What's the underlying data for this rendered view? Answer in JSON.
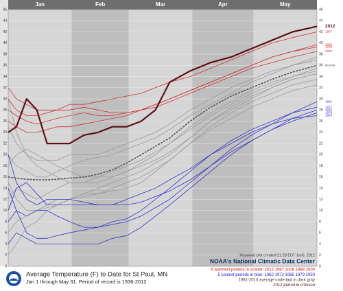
{
  "chart_data": {
    "type": "line",
    "title": "Average Temperature (F) to Date for St Paul, MN",
    "subtitle": "Jan 1 through May 31. Period of record is 1938-2012",
    "source": "NOAA's National Climatic Data Center",
    "credit": "Haywood plot created 21:28 EDT Jun6, 2012",
    "notes": [
      {
        "text": "5 warmest periods in scarlet: 2012 1987 2006 1998 2000",
        "color": "#cc2222"
      },
      {
        "text": "5 coolest periods in blue: 1962 1972 1965 1979 1950",
        "color": "#2222cc"
      },
      {
        "text": "1981-2010 average underlaid in dark gray",
        "color": "#444444"
      },
      {
        "text": "2012 period in crimson",
        "color": "#5c0f14"
      }
    ],
    "x": [
      1,
      5,
      10,
      15,
      20,
      25,
      31,
      38,
      45,
      52,
      59,
      66,
      73,
      80,
      90,
      100,
      110,
      120,
      130,
      140,
      152
    ],
    "xlim": [
      1,
      152
    ],
    "xticks": [
      {
        "value": 1,
        "label": "Jan"
      },
      {
        "value": 32,
        "label": "Feb"
      },
      {
        "value": 60,
        "label": "Mar"
      },
      {
        "value": 91,
        "label": "Apr"
      },
      {
        "value": 121,
        "label": "May"
      }
    ],
    "ylim": [
      0,
      46
    ],
    "yticks": [
      0,
      2,
      4,
      6,
      8,
      10,
      12,
      14,
      16,
      18,
      20,
      22,
      24,
      26,
      28,
      30,
      32,
      34,
      36,
      38,
      40,
      42,
      44,
      46
    ],
    "grid": true,
    "series": [
      {
        "color": "#9a9a9a",
        "values": [
          20,
          18,
          17,
          16,
          16,
          17,
          18,
          19,
          19.5,
          20,
          21,
          22,
          23,
          24.5,
          27,
          29,
          31,
          33,
          34.5,
          36,
          37.5
        ]
      },
      {
        "color": "#9a9a9a",
        "values": [
          12,
          14,
          13,
          12,
          13,
          14,
          15,
          15,
          16,
          17,
          18,
          19,
          20.5,
          22,
          24.5,
          27,
          29,
          31,
          32.5,
          34,
          35
        ]
      },
      {
        "color": "#9a9a9a",
        "values": [
          25,
          22,
          20,
          19,
          19,
          19,
          20,
          20,
          20,
          21,
          22,
          23,
          24,
          25.5,
          28,
          30,
          32,
          33.5,
          35,
          36,
          37
        ]
      },
      {
        "color": "#9a9a9a",
        "values": [
          6,
          8,
          9,
          10,
          11,
          12,
          12,
          13,
          14,
          15,
          16,
          17,
          18.5,
          20,
          23,
          26,
          28,
          30,
          32,
          33.5,
          34.5
        ]
      },
      {
        "color": "#9a9a9a",
        "values": [
          30,
          24,
          20,
          18,
          17,
          16,
          15,
          15,
          15,
          16,
          17,
          18.5,
          20,
          22,
          25,
          27.5,
          29.5,
          31.5,
          33,
          34,
          35.5
        ]
      },
      {
        "color": "#9a9a9a",
        "values": [
          2,
          4,
          7,
          8,
          10,
          11,
          12,
          13,
          13,
          13.5,
          14,
          15,
          17,
          19,
          22,
          25,
          27.5,
          29.5,
          31,
          32.5,
          33.5
        ]
      },
      {
        "color": "#9a9a9a",
        "values": [
          18,
          20,
          21,
          20,
          19,
          18,
          17,
          16,
          16,
          16,
          17,
          18,
          19,
          20.5,
          23,
          26,
          28.5,
          30.5,
          32,
          33.5,
          34.5
        ]
      },
      {
        "color": "#9a9a9a",
        "values": [
          15,
          12,
          10,
          10,
          10.5,
          11,
          12,
          12.5,
          13,
          14,
          15,
          16,
          17.5,
          19,
          22,
          24.5,
          26.5,
          28.5,
          30,
          31.5,
          32.5
        ]
      },
      {
        "name": "1962",
        "color": "#3333cc",
        "values": [
          8,
          10,
          9,
          10,
          10,
          9,
          8,
          7,
          7,
          7.5,
          8,
          9,
          10.5,
          12,
          15,
          18,
          21,
          23.5,
          25.5,
          27.5,
          29.5
        ]
      },
      {
        "name": "1972",
        "color": "#3333cc",
        "values": [
          14,
          10,
          6,
          5,
          5,
          5.5,
          6,
          6.5,
          7,
          8,
          8.5,
          10,
          12,
          14,
          17,
          20,
          22.5,
          24.5,
          26,
          27.5,
          28.5
        ]
      },
      {
        "name": "1965",
        "color": "#3333cc",
        "values": [
          20,
          15,
          12,
          11,
          12,
          12,
          12,
          11.5,
          11,
          11,
          11,
          11.5,
          12.5,
          13.5,
          15.5,
          18,
          20.5,
          22.5,
          24.5,
          26.5,
          28
        ]
      },
      {
        "name": "1979",
        "color": "#3333cc",
        "values": [
          4,
          6,
          5,
          4,
          4,
          4,
          4,
          4,
          4,
          5,
          5.5,
          7,
          9,
          11,
          14,
          17,
          20,
          22.5,
          24.5,
          26,
          27.5
        ]
      },
      {
        "name": "1950",
        "color": "#3333cc",
        "values": [
          10,
          14,
          15,
          13,
          11,
          11,
          11,
          11,
          11,
          11,
          12,
          13,
          14,
          15.5,
          17.5,
          20,
          22,
          24,
          25.5,
          26.5,
          27
        ]
      },
      {
        "name": "1987",
        "color": "#cc3333",
        "values": [
          30,
          28,
          27,
          27,
          27.5,
          28,
          29,
          29,
          29.5,
          30,
          30.5,
          31,
          32,
          33,
          34,
          35.5,
          37,
          38.5,
          40,
          41,
          42
        ]
      },
      {
        "name": "2006",
        "color": "#cc3333",
        "values": [
          32,
          30,
          29,
          28,
          28,
          28,
          28,
          28.5,
          28,
          27.5,
          27.5,
          28,
          29,
          30,
          31.5,
          33,
          34.5,
          36,
          37.5,
          38.5,
          39.7
        ]
      },
      {
        "name": "1998",
        "color": "#cc3333",
        "values": [
          28,
          27,
          26,
          25.5,
          26,
          26.5,
          27,
          27.5,
          27,
          27,
          27.5,
          28,
          29,
          30,
          31.5,
          33,
          34.5,
          36,
          37.5,
          38.5,
          39.3
        ]
      },
      {
        "name": "2000",
        "color": "#cc3333",
        "values": [
          26,
          25,
          24,
          24,
          24.5,
          25,
          25,
          25.5,
          26,
          26.5,
          27,
          28,
          28.5,
          29.5,
          31,
          32.5,
          34,
          35.5,
          36.5,
          37.5,
          38.5
        ]
      },
      {
        "name": "Normal",
        "color": "#555555",
        "dashed": true,
        "values": [
          16,
          15.8,
          15.6,
          15.5,
          15.5,
          15.6,
          15.8,
          16,
          16.5,
          17.3,
          18.5,
          20,
          21.5,
          23,
          26,
          28.5,
          30.5,
          32,
          33.5,
          34.8,
          36
        ]
      },
      {
        "name": "2012",
        "color": "#5c0f14",
        "bold": true,
        "values": [
          24,
          25,
          30,
          28,
          22,
          22,
          22,
          23.5,
          24,
          25,
          25,
          26,
          28,
          33,
          35,
          36.5,
          37.5,
          39,
          40.5,
          42,
          43
        ]
      }
    ]
  }
}
